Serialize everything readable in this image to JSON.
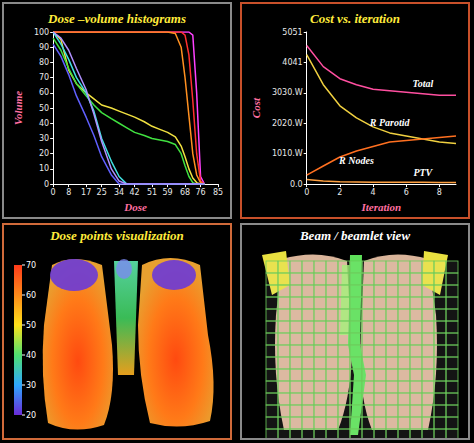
{
  "chart_data": [
    {
      "type": "line",
      "title": "Dose –volume histograms",
      "x_label": "Dose",
      "y_label": "Volume",
      "x": [
        0,
        4,
        8,
        12,
        17,
        21,
        25,
        30,
        34,
        38,
        42,
        47,
        51,
        55,
        59,
        63,
        66,
        68,
        70,
        72,
        74,
        76,
        78
      ],
      "xlim": [
        0,
        85
      ],
      "xticks": [
        0,
        8,
        17,
        25,
        34,
        42,
        51,
        59,
        68,
        76,
        85
      ],
      "ylim": [
        0,
        100
      ],
      "yticks": [
        0,
        10,
        20,
        30,
        40,
        50,
        60,
        70,
        80,
        90,
        100
      ],
      "grid": false,
      "series": [
        {
          "color": "#ff40ff",
          "values": [
            100,
            100,
            100,
            100,
            100,
            100,
            100,
            100,
            100,
            100,
            100,
            100,
            100,
            100,
            100,
            100,
            100,
            100,
            100,
            98,
            60,
            5,
            0
          ]
        },
        {
          "color": "#ff3030",
          "values": [
            100,
            100,
            100,
            100,
            100,
            100,
            100,
            100,
            100,
            100,
            100,
            100,
            100,
            100,
            100,
            100,
            100,
            98,
            85,
            55,
            20,
            2,
            0
          ]
        },
        {
          "color": "#ff9020",
          "values": [
            100,
            100,
            100,
            100,
            100,
            100,
            100,
            100,
            100,
            100,
            100,
            100,
            100,
            100,
            100,
            99,
            90,
            70,
            45,
            20,
            6,
            1,
            0
          ]
        },
        {
          "color": "#f0e040",
          "values": [
            100,
            95,
            75,
            66,
            60,
            56,
            52,
            50,
            48,
            46,
            44,
            41,
            38,
            36,
            34,
            31,
            25,
            18,
            10,
            4,
            1,
            0,
            0
          ]
        },
        {
          "color": "#40e040",
          "values": [
            96,
            88,
            76,
            66,
            58,
            52,
            47,
            43,
            40,
            37,
            34,
            32,
            30,
            29,
            28,
            26,
            20,
            12,
            5,
            1,
            0,
            0,
            0
          ]
        },
        {
          "color": "#40e0e0",
          "values": [
            100,
            92,
            82,
            70,
            60,
            48,
            30,
            15,
            5,
            0,
            0,
            0,
            0,
            0,
            0,
            0,
            0,
            0,
            0,
            0,
            0,
            0,
            0
          ]
        },
        {
          "color": "#6060ff",
          "values": [
            92,
            84,
            72,
            58,
            44,
            32,
            18,
            6,
            0,
            0,
            0,
            0,
            0,
            0,
            0,
            0,
            0,
            0,
            0,
            0,
            0,
            0,
            0
          ]
        },
        {
          "color": "#b090ff",
          "values": [
            100,
            96,
            88,
            76,
            62,
            46,
            28,
            10,
            2,
            0,
            0,
            0,
            0,
            0,
            0,
            0,
            0,
            0,
            0,
            0,
            0,
            0,
            0
          ]
        }
      ]
    },
    {
      "type": "line",
      "title": "Cost vs. iteration",
      "x_label": "Iteration",
      "y_label": "Cost",
      "x": [
        0,
        1,
        2,
        3,
        4,
        5,
        6,
        7,
        8,
        9
      ],
      "xlim": [
        0,
        9
      ],
      "xticks": [
        0,
        2,
        4,
        6,
        8
      ],
      "ylim": [
        0,
        5051
      ],
      "yticks": [
        {
          "value": 0,
          "label": "0.0"
        },
        {
          "value": 1010,
          "label": "1010.W"
        },
        {
          "value": 2020,
          "label": "2020.W"
        },
        {
          "value": 3030,
          "label": "3030.W"
        },
        4041,
        5051
      ],
      "grid": false,
      "series": [
        {
          "name": "Total",
          "color": "#ff4fa0",
          "values": [
            4600,
            3900,
            3500,
            3300,
            3150,
            3100,
            3050,
            3000,
            2950,
            2950
          ]
        },
        {
          "name": "R Parotid",
          "color": "#f0d040",
          "values": [
            4300,
            3300,
            2600,
            2200,
            1900,
            1700,
            1600,
            1500,
            1400,
            1350
          ]
        },
        {
          "name": "R Nodes",
          "color": "#ff7020",
          "values": [
            300,
            600,
            900,
            1100,
            1250,
            1400,
            1450,
            1500,
            1550,
            1600
          ]
        },
        {
          "name": "PTV",
          "color": "#ffa040",
          "values": [
            150,
            100,
            80,
            70,
            60,
            60,
            60,
            60,
            50,
            50
          ]
        }
      ]
    }
  ],
  "visualizations": [
    {
      "title": "Dose points visualization",
      "colorbar": {
        "range": [
          20,
          70
        ],
        "ticks": [
          20,
          30,
          40,
          50,
          60,
          70
        ]
      }
    },
    {
      "title": "Beam / beamlet view"
    }
  ]
}
